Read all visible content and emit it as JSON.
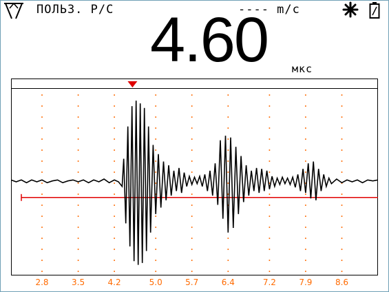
{
  "header": {
    "mode_label": "ПОЛЬЗ. Р/С",
    "velocity_label": "---- m/c"
  },
  "reading": {
    "value": "4.60",
    "unit": "мкс"
  },
  "icons": {
    "probe": "probe-icon",
    "backlight": "sun-icon",
    "battery": "battery-icon"
  },
  "colors": {
    "waveform": "#000000",
    "gate": "#e00000",
    "grid": "#ff6a00",
    "marker": "#e00000"
  },
  "chart_data": {
    "type": "line",
    "xlabel": "",
    "ylabel": "",
    "x_ticks": [
      "2.8",
      "3.5",
      "4.2",
      "5.0",
      "5.7",
      "6.4",
      "7.2",
      "7.9",
      "8.6"
    ],
    "xlim": [
      2.2,
      9.3
    ],
    "ylim": [
      -1,
      1
    ],
    "grid": true,
    "gate_level": -0.17,
    "gate_start": 2.4,
    "marker_x": 4.55,
    "series": [
      {
        "values": [
          [
            2.2,
            0.02
          ],
          [
            2.3,
            0.0
          ],
          [
            2.4,
            0.02
          ],
          [
            2.5,
            -0.01
          ],
          [
            2.6,
            0.02
          ],
          [
            2.7,
            0.0
          ],
          [
            2.8,
            0.02
          ],
          [
            2.9,
            -0.01
          ],
          [
            3.0,
            0.01
          ],
          [
            3.1,
            0.02
          ],
          [
            3.2,
            -0.01
          ],
          [
            3.3,
            0.01
          ],
          [
            3.4,
            0.02
          ],
          [
            3.5,
            0.0
          ],
          [
            3.6,
            0.02
          ],
          [
            3.7,
            -0.01
          ],
          [
            3.8,
            0.02
          ],
          [
            3.9,
            0.0
          ],
          [
            4.0,
            0.03
          ],
          [
            4.1,
            -0.01
          ],
          [
            4.2,
            0.02
          ],
          [
            4.28,
            0.0
          ],
          [
            4.35,
            -0.05
          ],
          [
            4.38,
            0.25
          ],
          [
            4.42,
            -0.45
          ],
          [
            4.46,
            0.6
          ],
          [
            4.5,
            -0.7
          ],
          [
            4.54,
            0.82
          ],
          [
            4.58,
            -0.86
          ],
          [
            4.62,
            0.88
          ],
          [
            4.66,
            -0.9
          ],
          [
            4.7,
            0.85
          ],
          [
            4.74,
            -0.88
          ],
          [
            4.78,
            0.8
          ],
          [
            4.82,
            -0.75
          ],
          [
            4.86,
            0.6
          ],
          [
            4.9,
            -0.55
          ],
          [
            4.95,
            0.4
          ],
          [
            5.0,
            -0.35
          ],
          [
            5.05,
            0.3
          ],
          [
            5.1,
            -0.28
          ],
          [
            5.15,
            0.22
          ],
          [
            5.2,
            -0.2
          ],
          [
            5.25,
            0.18
          ],
          [
            5.3,
            -0.15
          ],
          [
            5.35,
            0.12
          ],
          [
            5.4,
            -0.1
          ],
          [
            5.45,
            0.15
          ],
          [
            5.5,
            -0.12
          ],
          [
            5.55,
            0.1
          ],
          [
            5.6,
            -0.05
          ],
          [
            5.65,
            0.06
          ],
          [
            5.7,
            -0.03
          ],
          [
            5.75,
            0.05
          ],
          [
            5.8,
            -0.02
          ],
          [
            5.85,
            0.06
          ],
          [
            5.9,
            -0.05
          ],
          [
            5.95,
            0.08
          ],
          [
            6.0,
            -0.1
          ],
          [
            6.05,
            0.12
          ],
          [
            6.1,
            -0.15
          ],
          [
            6.15,
            0.2
          ],
          [
            6.2,
            -0.25
          ],
          [
            6.25,
            0.45
          ],
          [
            6.3,
            -0.4
          ],
          [
            6.35,
            0.5
          ],
          [
            6.4,
            -0.55
          ],
          [
            6.45,
            0.48
          ],
          [
            6.5,
            -0.5
          ],
          [
            6.55,
            0.38
          ],
          [
            6.6,
            -0.35
          ],
          [
            6.65,
            0.28
          ],
          [
            6.7,
            -0.22
          ],
          [
            6.75,
            0.18
          ],
          [
            6.8,
            -0.15
          ],
          [
            6.85,
            0.12
          ],
          [
            6.9,
            -0.1
          ],
          [
            6.95,
            0.15
          ],
          [
            7.0,
            -0.12
          ],
          [
            7.05,
            0.14
          ],
          [
            7.1,
            -0.1
          ],
          [
            7.15,
            0.12
          ],
          [
            7.2,
            -0.08
          ],
          [
            7.25,
            0.06
          ],
          [
            7.3,
            -0.05
          ],
          [
            7.35,
            0.04
          ],
          [
            7.4,
            -0.03
          ],
          [
            7.45,
            0.05
          ],
          [
            7.5,
            -0.02
          ],
          [
            7.55,
            0.04
          ],
          [
            7.6,
            -0.03
          ],
          [
            7.65,
            0.05
          ],
          [
            7.7,
            -0.06
          ],
          [
            7.75,
            0.08
          ],
          [
            7.8,
            -0.1
          ],
          [
            7.85,
            0.14
          ],
          [
            7.9,
            -0.12
          ],
          [
            7.95,
            0.2
          ],
          [
            8.0,
            -0.18
          ],
          [
            8.05,
            0.22
          ],
          [
            8.1,
            -0.2
          ],
          [
            8.15,
            0.14
          ],
          [
            8.2,
            -0.1
          ],
          [
            8.25,
            0.08
          ],
          [
            8.3,
            -0.05
          ],
          [
            8.35,
            0.04
          ],
          [
            8.4,
            -0.02
          ],
          [
            8.5,
            0.03
          ],
          [
            8.6,
            -0.01
          ],
          [
            8.7,
            0.02
          ],
          [
            8.8,
            0.0
          ],
          [
            8.9,
            0.02
          ],
          [
            9.0,
            -0.01
          ],
          [
            9.1,
            0.02
          ],
          [
            9.2,
            0.01
          ],
          [
            9.3,
            0.02
          ]
        ]
      }
    ]
  }
}
